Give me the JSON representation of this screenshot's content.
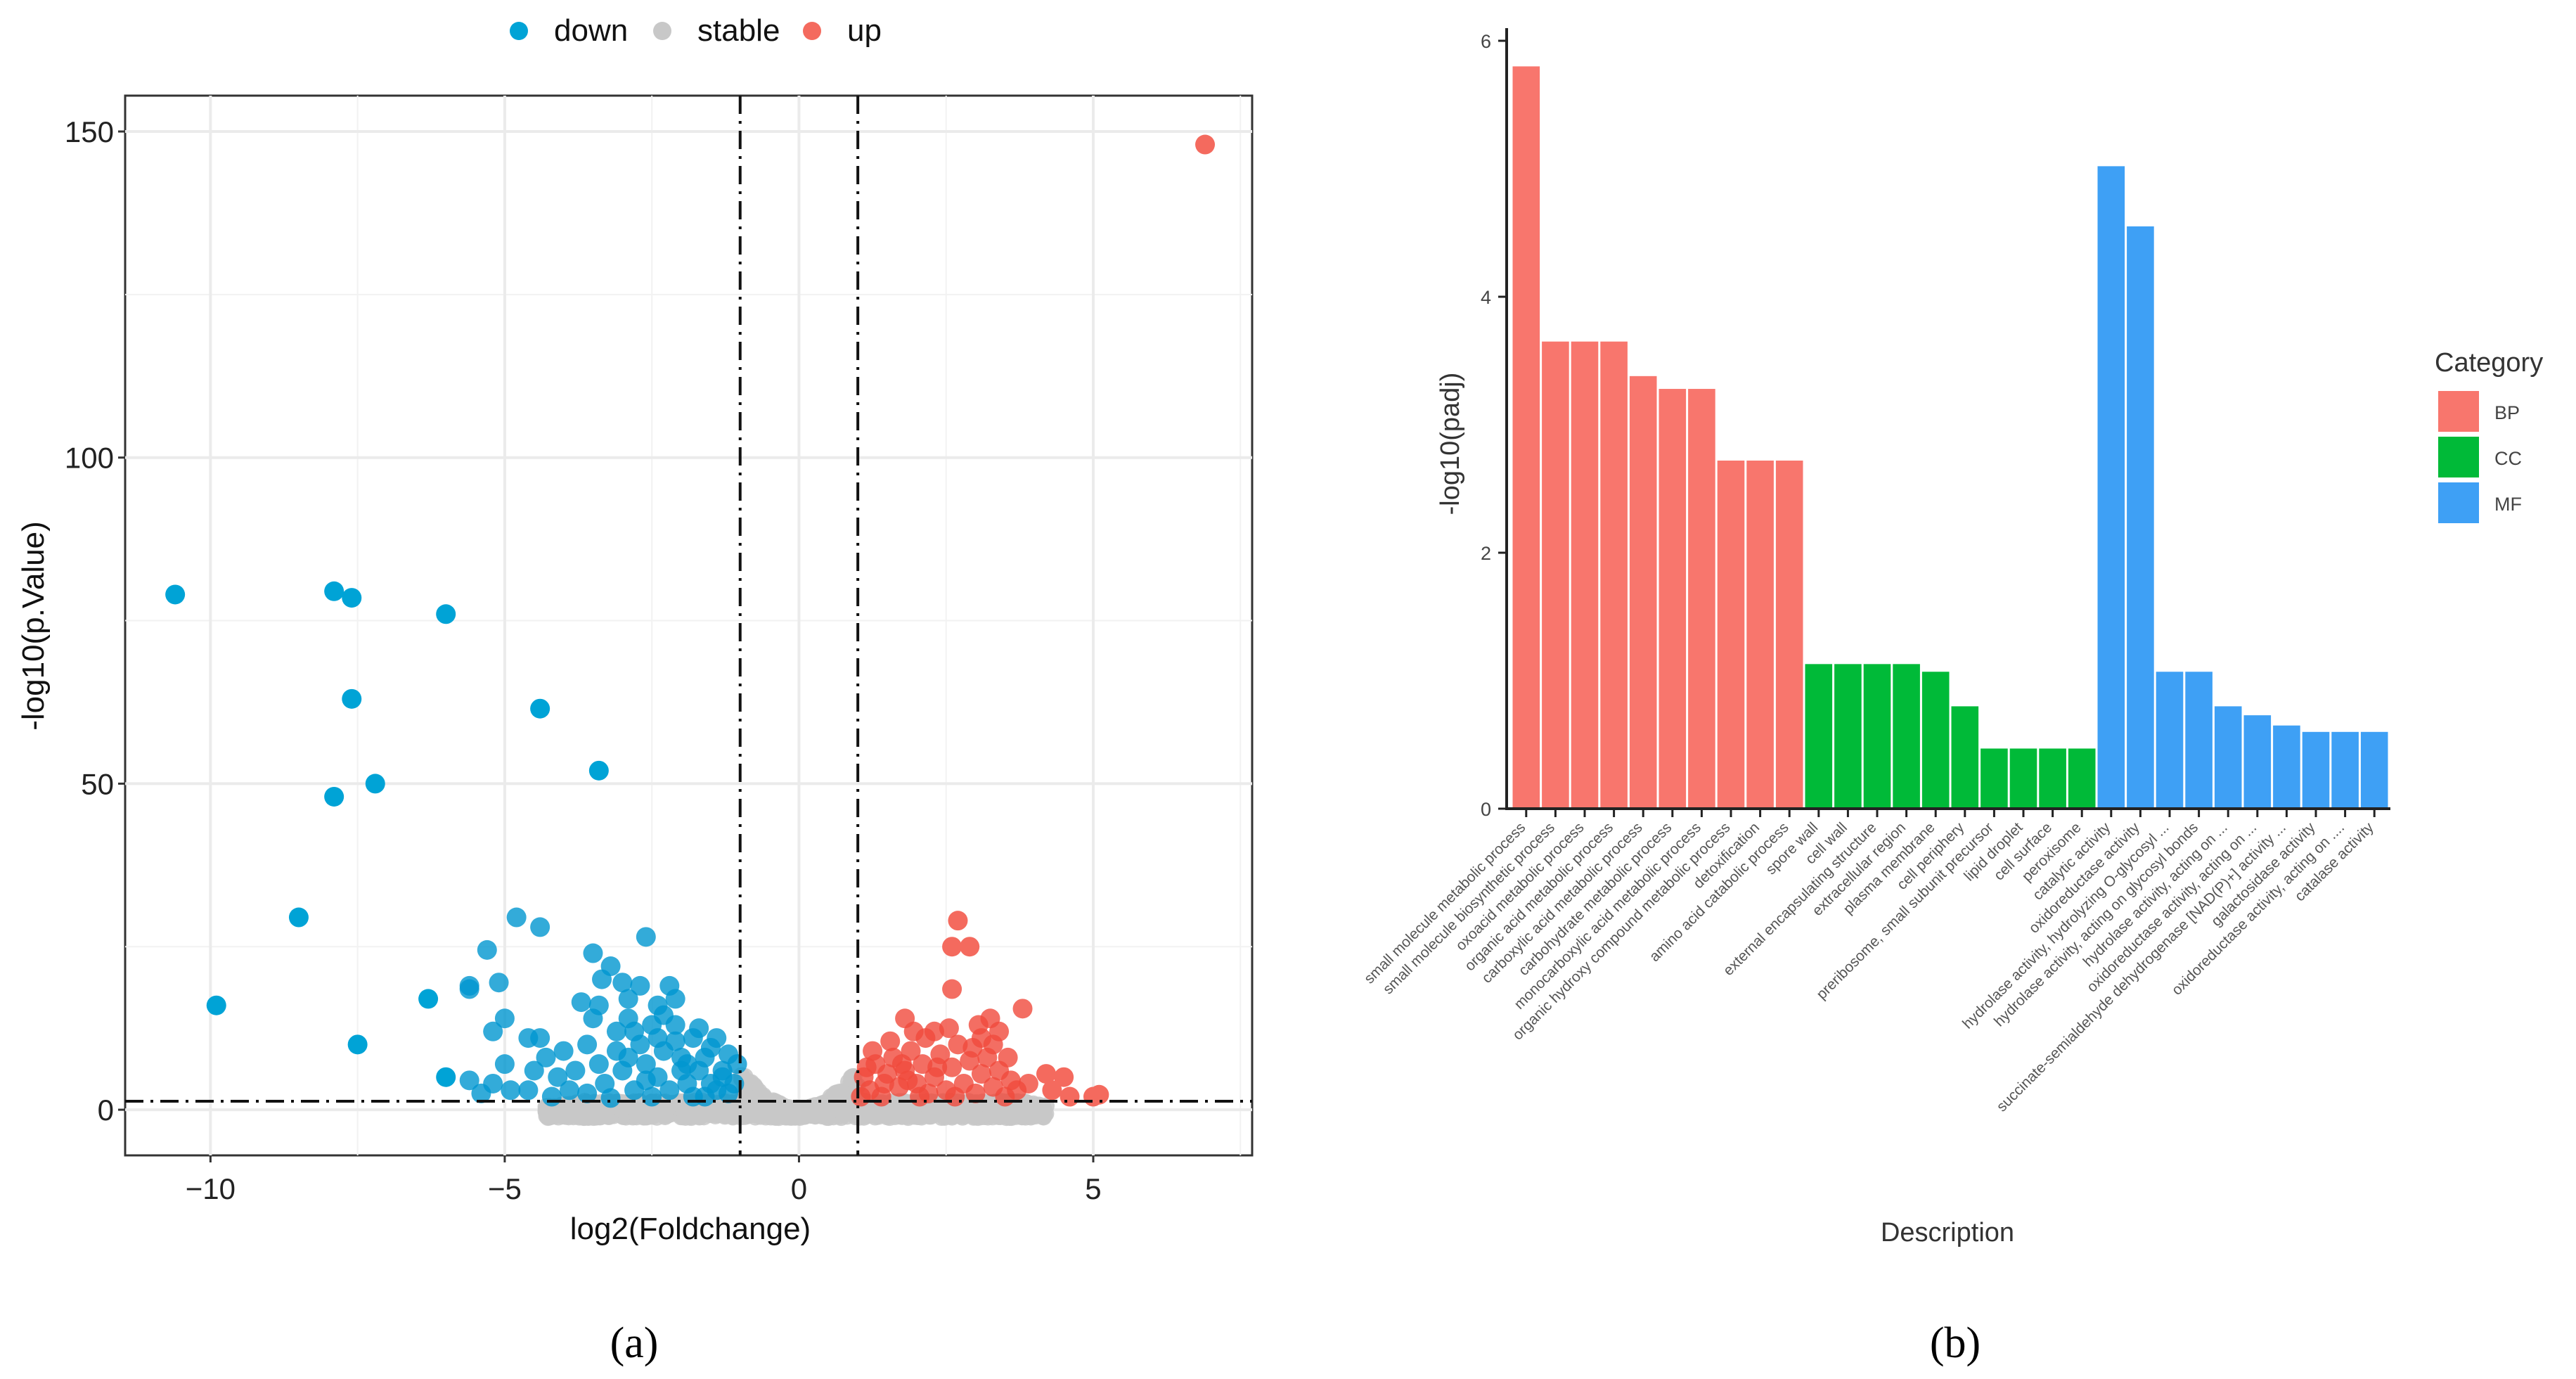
{
  "chart_data": [
    {
      "type": "scatter",
      "panel_label": "(a)",
      "xlabel": "log2(Foldchange)",
      "ylabel": "-log10(p.Value)",
      "xlim": [
        -11.45,
        7.7
      ],
      "ylim": [
        -7,
        155.5
      ],
      "xticks": [
        -10,
        -5,
        0,
        5
      ],
      "yticks": [
        0,
        50,
        100,
        150
      ],
      "xtick_labels": [
        "−10",
        "−5",
        "0",
        "5"
      ],
      "ytick_labels": [
        "0",
        "50",
        "100",
        "150"
      ],
      "thresholds": {
        "x": [
          -1,
          1
        ],
        "y": 1.3
      },
      "grid": true,
      "legend": {
        "placement": "top",
        "entries": [
          {
            "name": "down",
            "color": "#00a3d6"
          },
          {
            "name": "stable",
            "color": "#c8c8c8"
          },
          {
            "name": "up",
            "color": "#f46a5e"
          }
        ]
      },
      "series": [
        {
          "name": "down",
          "color": "#0096cf",
          "points": [
            [
              -10.6,
              79
            ],
            [
              -7.9,
              79.5
            ],
            [
              -7.6,
              78.5
            ],
            [
              -6.0,
              76
            ],
            [
              -7.6,
              63
            ],
            [
              -4.4,
              61.5
            ],
            [
              -3.4,
              52
            ],
            [
              -7.2,
              50
            ],
            [
              -7.9,
              48
            ],
            [
              -8.5,
              29.5
            ],
            [
              -9.9,
              16
            ],
            [
              -7.5,
              10
            ],
            [
              -6.3,
              17
            ],
            [
              -5.6,
              18.5
            ],
            [
              -5.6,
              19
            ],
            [
              -5.3,
              24.5
            ],
            [
              -4.8,
              29.5
            ],
            [
              -4.4,
              28
            ],
            [
              -2.6,
              26.5
            ],
            [
              -3.5,
              24
            ],
            [
              -3.2,
              22
            ],
            [
              -3.35,
              20
            ],
            [
              -3.0,
              19.5
            ],
            [
              -2.7,
              19
            ],
            [
              -2.2,
              19
            ],
            [
              -2.1,
              17
            ],
            [
              -5.1,
              19.5
            ],
            [
              -5.2,
              12
            ],
            [
              -5.0,
              14
            ],
            [
              -4.6,
              11
            ],
            [
              -4.4,
              11
            ],
            [
              -5.0,
              7
            ],
            [
              -5.6,
              4.5
            ],
            [
              -5.2,
              4
            ],
            [
              -5.4,
              2.5
            ],
            [
              -6.0,
              5
            ],
            [
              -4.9,
              3
            ],
            [
              -4.6,
              3
            ],
            [
              -4.3,
              8
            ],
            [
              -3.5,
              14
            ],
            [
              -3.4,
              16
            ],
            [
              -2.9,
              14
            ],
            [
              -2.5,
              13
            ],
            [
              -2.1,
              13
            ],
            [
              -1.8,
              11
            ],
            [
              -1.4,
              11
            ],
            [
              -3.6,
              10
            ],
            [
              -3.1,
              9
            ],
            [
              -2.0,
              8
            ],
            [
              -1.6,
              8
            ],
            [
              -3.8,
              6
            ],
            [
              -4.1,
              5
            ],
            [
              -3.9,
              3
            ],
            [
              -4.2,
              2
            ],
            [
              -3.3,
              4
            ],
            [
              -3.0,
              6
            ],
            [
              -2.8,
              3
            ],
            [
              -2.6,
              7
            ],
            [
              -2.4,
              5
            ],
            [
              -2.3,
              9
            ],
            [
              -2.2,
              3
            ],
            [
              -2.0,
              6
            ],
            [
              -1.9,
              4
            ],
            [
              -1.8,
              2
            ],
            [
              -1.7,
              6
            ],
            [
              -1.5,
              4
            ],
            [
              -1.4,
              3
            ],
            [
              -1.3,
              6
            ],
            [
              -1.2,
              2.5
            ],
            [
              -1.1,
              4
            ],
            [
              -1.05,
              7
            ],
            [
              -2.7,
              10
            ],
            [
              -2.5,
              2
            ],
            [
              -3.6,
              2.5
            ],
            [
              -3.2,
              1.8
            ],
            [
              -2.9,
              8
            ],
            [
              -2.4,
              11
            ],
            [
              -1.6,
              2
            ],
            [
              -1.2,
              8.5
            ],
            [
              -2.1,
              10.5
            ],
            [
              -1.9,
              7
            ],
            [
              -2.6,
              4.5
            ],
            [
              -3.4,
              7
            ],
            [
              -4.0,
              9
            ],
            [
              -1.3,
              5
            ],
            [
              -2.8,
              12
            ],
            [
              -2.3,
              14.5
            ],
            [
              -1.5,
              9.5
            ],
            [
              -4.5,
              6
            ],
            [
              -3.7,
              16.5
            ],
            [
              -2.9,
              17
            ],
            [
              -2.4,
              16
            ],
            [
              -3.1,
              12
            ],
            [
              -1.7,
              12.5
            ]
          ]
        },
        {
          "name": "up",
          "color": "#f04a3c",
          "points": [
            [
              6.9,
              148
            ],
            [
              2.7,
              29
            ],
            [
              2.6,
              25
            ],
            [
              2.9,
              25
            ],
            [
              2.6,
              18.5
            ],
            [
              3.8,
              15.5
            ],
            [
              1.8,
              14
            ],
            [
              2.3,
              12
            ],
            [
              3.3,
              10
            ],
            [
              3.4,
              12
            ],
            [
              3.1,
              11
            ],
            [
              4.2,
              5.5
            ],
            [
              4.5,
              5
            ],
            [
              4.6,
              2
            ],
            [
              5.0,
              2
            ],
            [
              5.1,
              2.3
            ],
            [
              4.3,
              3
            ],
            [
              3.7,
              3
            ],
            [
              1.1,
              5
            ],
            [
              1.2,
              3
            ],
            [
              1.3,
              7
            ],
            [
              1.4,
              2
            ],
            [
              1.5,
              5.5
            ],
            [
              1.6,
              8
            ],
            [
              1.7,
              3.5
            ],
            [
              1.8,
              6
            ],
            [
              1.9,
              9
            ],
            [
              2.0,
              4
            ],
            [
              2.1,
              7
            ],
            [
              2.2,
              2.5
            ],
            [
              2.3,
              5
            ],
            [
              2.4,
              8.5
            ],
            [
              2.5,
              3
            ],
            [
              2.6,
              6.5
            ],
            [
              2.7,
              10
            ],
            [
              2.8,
              4
            ],
            [
              2.9,
              7.5
            ],
            [
              3.0,
              2.5
            ],
            [
              3.1,
              5.5
            ],
            [
              3.2,
              8
            ],
            [
              3.3,
              3.5
            ],
            [
              3.4,
              6
            ],
            [
              3.5,
              2
            ],
            [
              3.6,
              4.5
            ],
            [
              1.05,
              2
            ],
            [
              1.25,
              9
            ],
            [
              1.55,
              10.5
            ],
            [
              1.95,
              12
            ],
            [
              2.15,
              11
            ],
            [
              2.55,
              12.5
            ],
            [
              3.05,
              13
            ],
            [
              3.25,
              14
            ],
            [
              1.45,
              4
            ],
            [
              1.75,
              7
            ],
            [
              2.05,
              2
            ],
            [
              2.35,
              6.5
            ],
            [
              2.65,
              2
            ],
            [
              2.95,
              9.5
            ],
            [
              3.55,
              8
            ],
            [
              3.9,
              4
            ],
            [
              1.15,
              6.5
            ],
            [
              1.85,
              4.5
            ]
          ]
        }
      ]
    },
    {
      "type": "bar",
      "panel_label": "(b)",
      "xlabel": "Description",
      "ylabel": "-log10(padj)",
      "ylim": [
        0,
        6
      ],
      "yticks": [
        0,
        2,
        4,
        6
      ],
      "ytick_labels": [
        "0",
        "2",
        "4",
        "6"
      ],
      "grid": false,
      "legend": {
        "placement": "right",
        "title": "Category",
        "entries": [
          {
            "name": "BP",
            "color": "#f8766d"
          },
          {
            "name": "CC",
            "color": "#00ba38"
          },
          {
            "name": "MF",
            "color": "#3ea0f5"
          }
        ]
      },
      "categories": [
        "small molecule metabolic process",
        "small molecule biosynthetic process",
        "oxoacid metabolic process",
        "organic acid metabolic process",
        "carboxylic acid metabolic process",
        "carbohydrate metabolic process",
        "monocarboxylic acid metabolic process",
        "organic hydroxy compound metabolic process",
        "detoxification",
        "amino acid catabolic process",
        "spore wall",
        "cell wall",
        "external encapsulating structure",
        "extracellular region",
        "plasma membrane",
        "cell periphery",
        "preribosome, small subunit precursor",
        "lipid droplet",
        "cell surface",
        "peroxisome",
        "catalytic activity",
        "oxidoreductase activity",
        "hydrolase activity, hydrolyzing O-glycosyl ...",
        "hydrolase activity, acting on glycosyl bonds",
        "hydrolase activity, acting on ...",
        "oxidoreductase activity, acting on ...",
        "succinate-semialdehyde dehydrogenase [NAD(P)+] activity ...",
        "galactosidase activity",
        "oxidoreductase activity, acting on ....",
        "catalase activity"
      ],
      "groups": [
        "BP",
        "BP",
        "BP",
        "BP",
        "BP",
        "BP",
        "BP",
        "BP",
        "BP",
        "BP",
        "CC",
        "CC",
        "CC",
        "CC",
        "CC",
        "CC",
        "CC",
        "CC",
        "CC",
        "CC",
        "MF",
        "MF",
        "MF",
        "MF",
        "MF",
        "MF",
        "MF",
        "MF",
        "MF",
        "MF"
      ],
      "values": [
        5.8,
        3.65,
        3.65,
        3.65,
        3.38,
        3.28,
        3.28,
        2.72,
        2.72,
        2.72,
        1.13,
        1.13,
        1.13,
        1.13,
        1.07,
        0.8,
        0.47,
        0.47,
        0.47,
        0.47,
        5.02,
        4.55,
        1.07,
        1.07,
        0.8,
        0.73,
        0.65,
        0.6,
        0.6,
        0.6
      ]
    }
  ]
}
